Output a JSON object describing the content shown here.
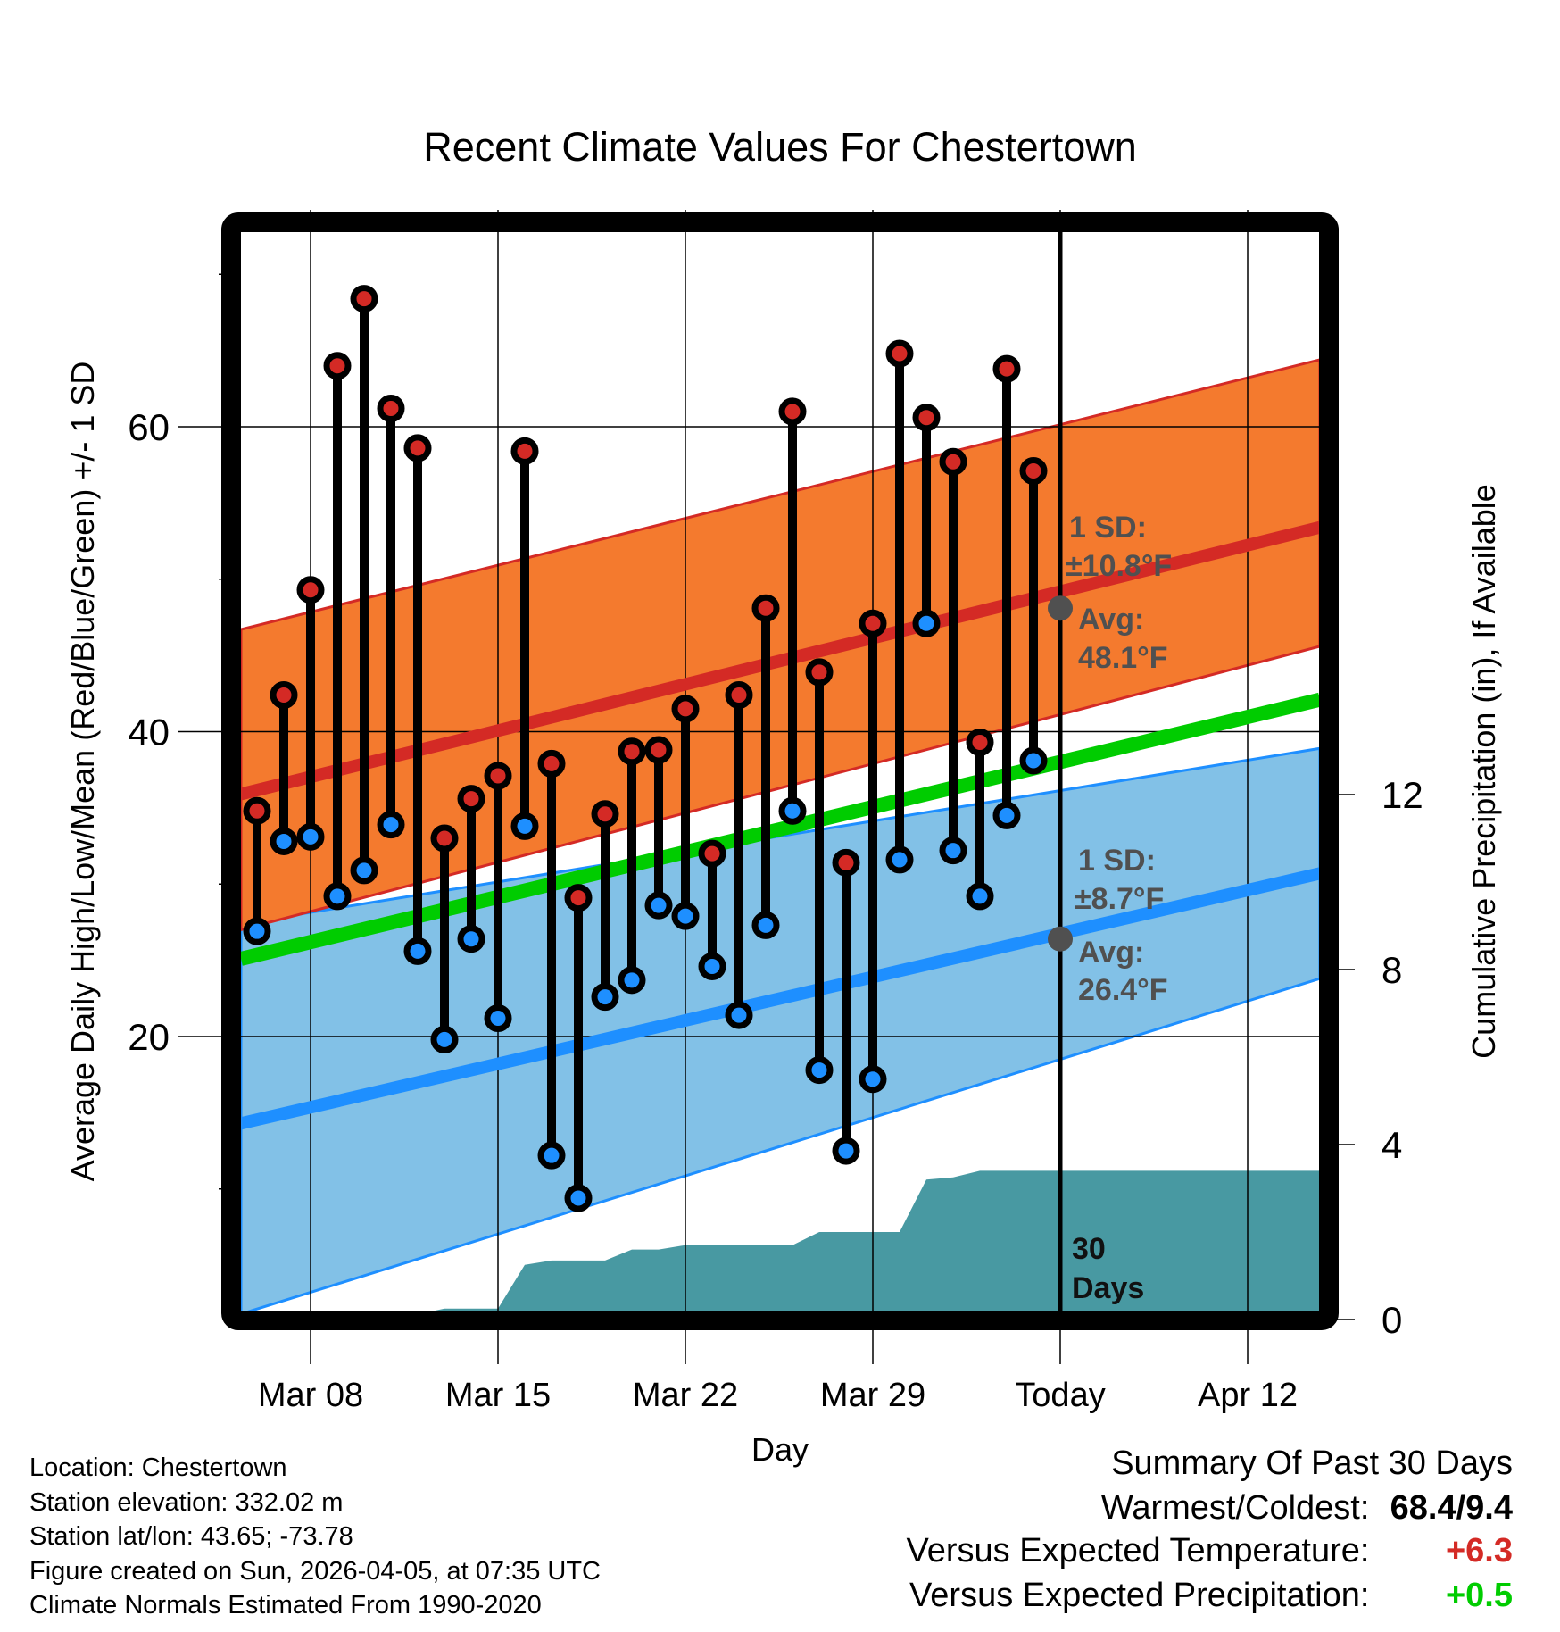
{
  "chart_data": {
    "type": "line",
    "title": "Recent Climate Values For Chestertown",
    "xlabel": "Day",
    "ylabel": "Average Daily High/Low/Mean (Red/Blue/Green) +/- 1 SD",
    "y2label": "Cumulative Precipitation (in), If Available",
    "ylim": [
      2.0,
      72.8
    ],
    "y2lim": [
      0.2,
      24.9
    ],
    "yticks": [
      20,
      40,
      60
    ],
    "yminor_ticks": [
      10,
      30,
      50,
      70
    ],
    "y2ticks": [
      0,
      4,
      8,
      12
    ],
    "xlim_days_from_mar08": [
      -2.6,
      37.7
    ],
    "xticks": [
      {
        "label": "Mar 08",
        "day": 0
      },
      {
        "label": "Mar 15",
        "day": 7
      },
      {
        "label": "Mar 22",
        "day": 14
      },
      {
        "label": "Mar 29",
        "day": 21
      },
      {
        "label": "Today",
        "day": 28
      },
      {
        "label": "Apr 12",
        "day": 35
      }
    ],
    "grid": true,
    "today_marker": {
      "day": 28,
      "label_line1": "30",
      "label_line2": "Days"
    },
    "dates": [
      "Mar 06",
      "Mar 07",
      "Mar 08",
      "Mar 09",
      "Mar 10",
      "Mar 11",
      "Mar 12",
      "Mar 13",
      "Mar 14",
      "Mar 15",
      "Mar 16",
      "Mar 17",
      "Mar 18",
      "Mar 19",
      "Mar 20",
      "Mar 21",
      "Mar 22",
      "Mar 23",
      "Mar 24",
      "Mar 25",
      "Mar 26",
      "Mar 27",
      "Mar 28",
      "Mar 29",
      "Mar 30",
      "Mar 31",
      "Apr 01",
      "Apr 02",
      "Apr 03",
      "Apr 04"
    ],
    "days": [
      -2,
      -1,
      0,
      1,
      2,
      3,
      4,
      5,
      6,
      7,
      8,
      9,
      10,
      11,
      12,
      13,
      14,
      15,
      16,
      17,
      18,
      19,
      20,
      21,
      22,
      23,
      24,
      25,
      26,
      27
    ],
    "series": [
      {
        "name": "Daily High",
        "color": "#d42a25",
        "values": [
          34.8,
          42.4,
          49.3,
          64.0,
          68.4,
          61.2,
          58.6,
          33.0,
          35.6,
          37.1,
          58.4,
          37.9,
          29.1,
          34.6,
          38.7,
          38.8,
          41.5,
          32.0,
          42.4,
          48.1,
          61.0,
          43.9,
          31.4,
          47.1,
          64.8,
          60.6,
          57.7,
          39.3,
          63.8,
          57.1
        ]
      },
      {
        "name": "Daily Low",
        "color": "#1e8fff",
        "values": [
          26.9,
          32.8,
          33.1,
          29.2,
          30.9,
          33.9,
          25.6,
          19.8,
          26.4,
          21.2,
          33.8,
          12.2,
          9.4,
          22.6,
          23.7,
          28.6,
          27.9,
          24.6,
          21.4,
          27.3,
          34.8,
          17.8,
          12.5,
          17.2,
          31.6,
          47.1,
          32.2,
          29.2,
          34.5,
          38.1
        ]
      }
    ],
    "normals": {
      "high": {
        "name": "Normal High",
        "color": "#d42a25",
        "band_color": "#f47a2e",
        "start": 35.9,
        "end": 53.4,
        "start_upper": 46.7,
        "end_upper": 64.4,
        "start_lower": 27.0,
        "end_lower": 45.6
      },
      "low": {
        "name": "Normal Low",
        "color": "#1e8fff",
        "band_color": "#82c1e7",
        "start": 14.3,
        "end": 30.7,
        "start_upper": 27.4,
        "end_upper": 38.9,
        "start_lower": 1.8,
        "end_lower": 23.8
      },
      "mean": {
        "name": "Normal Mean",
        "color": "#00cc00",
        "start": 25.1,
        "end": 42.1
      }
    },
    "precip": {
      "name": "Cumulative Precipitation",
      "color": "#4899a2",
      "points": [
        [
          -2.6,
          0.0
        ],
        [
          1.0,
          0.0
        ],
        [
          2.5,
          0.1
        ],
        [
          4.0,
          0.12
        ],
        [
          5.0,
          0.25
        ],
        [
          7.0,
          0.25
        ],
        [
          8.0,
          1.25
        ],
        [
          9.0,
          1.35
        ],
        [
          11.0,
          1.35
        ],
        [
          12.0,
          1.6
        ],
        [
          13.0,
          1.6
        ],
        [
          14.0,
          1.7
        ],
        [
          18.0,
          1.7
        ],
        [
          19.0,
          2.0
        ],
        [
          22.0,
          2.0
        ],
        [
          23.0,
          3.2
        ],
        [
          24.0,
          3.25
        ],
        [
          25.0,
          3.4
        ],
        [
          37.7,
          3.4
        ]
      ]
    },
    "annotations": {
      "high_sd_label": "1 SD:",
      "high_sd_value": "±10.8°F",
      "high_avg_label": "Avg:",
      "high_avg_value": "48.1°F",
      "high_avg": 48.1,
      "low_sd_label": "1 SD:",
      "low_sd_value": "±8.7°F",
      "low_avg_label": "Avg:",
      "low_avg_value": "26.4°F",
      "low_avg": 26.4
    }
  },
  "info": {
    "location": "Location: Chestertown",
    "elevation": "Station elevation: 332.02 m",
    "latlon": "Station lat/lon: 43.65; -73.78",
    "created": "Figure created on Sun, 2026-04-05, at 07:35 UTC",
    "normals": "Climate Normals Estimated From 1990-2020"
  },
  "summary": {
    "title": "Summary Of Past 30 Days",
    "warmest_label": "Warmest/Coldest:",
    "warmest_value": "68.4/9.4",
    "temp_label": "Versus Expected Temperature:",
    "temp_value": "+6.3",
    "temp_color": "#d42a25",
    "precip_label": "Versus Expected Precipitation:",
    "precip_value": "+0.5",
    "precip_color": "#00cc00"
  }
}
